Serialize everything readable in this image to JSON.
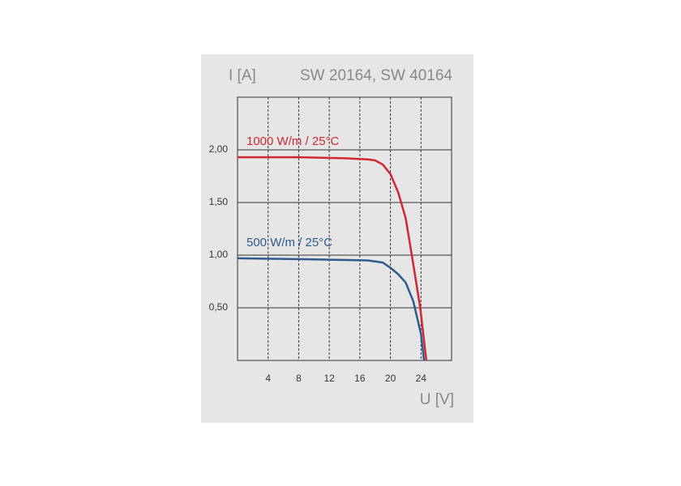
{
  "chart_data": {
    "type": "line",
    "y_label": "I [A]",
    "title": "SW 20164, SW 40164",
    "x_label": "U [V]",
    "xlim": [
      0,
      28
    ],
    "xticks": [
      4,
      8,
      12,
      16,
      20,
      24
    ],
    "ylim": [
      0,
      2.5
    ],
    "yticks": [
      {
        "value": 0.5,
        "label": "0,50"
      },
      {
        "value": 1,
        "label": "1,00"
      },
      {
        "value": 1.5,
        "label": "1,50"
      },
      {
        "value": 2,
        "label": "2,00"
      }
    ],
    "grid": true,
    "series": [
      {
        "name": "1000 W/m  / 25°C",
        "color": "#d22630",
        "x": [
          0,
          8,
          14,
          17,
          18,
          19,
          20,
          21,
          22,
          22.8,
          23.9,
          24.7
        ],
        "values": [
          1.93,
          1.93,
          1.92,
          1.91,
          1.9,
          1.86,
          1.77,
          1.6,
          1.35,
          1.0,
          0.5,
          0
        ]
      },
      {
        "name": "500 W/m  / 25°C",
        "color": "#2e5a8e",
        "x": [
          0,
          10,
          17,
          18,
          19,
          20,
          21,
          22,
          23,
          24,
          24.4
        ],
        "values": [
          0.97,
          0.96,
          0.95,
          0.94,
          0.93,
          0.88,
          0.82,
          0.74,
          0.56,
          0.25,
          0
        ]
      }
    ]
  }
}
